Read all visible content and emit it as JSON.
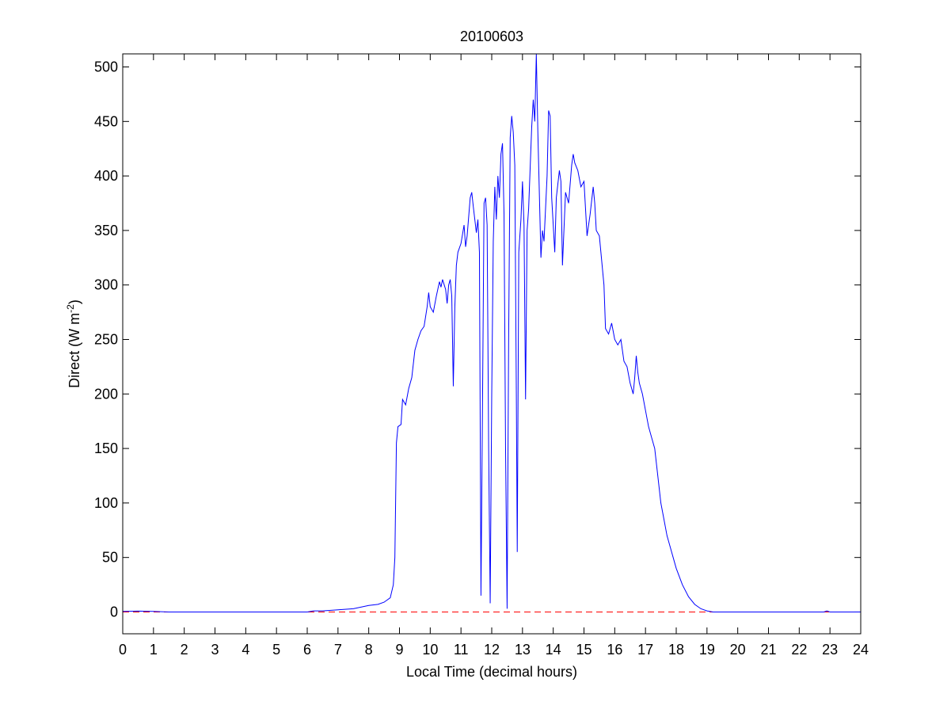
{
  "chart_data": {
    "type": "line",
    "title": "20100603",
    "xlabel": "Local Time (decimal hours)",
    "ylabel_parts": [
      "Direct (W m",
      "-2",
      ")"
    ],
    "xlim": [
      0,
      24
    ],
    "xticks": [
      0,
      1,
      2,
      3,
      4,
      5,
      6,
      7,
      8,
      9,
      10,
      11,
      12,
      13,
      14,
      15,
      16,
      17,
      18,
      19,
      20,
      21,
      22,
      23,
      24
    ],
    "ylim": [
      -20,
      512
    ],
    "yticks": [
      0,
      50,
      100,
      150,
      200,
      250,
      300,
      350,
      400,
      450,
      500
    ],
    "reference_line": {
      "value": 0,
      "color": "#ff0000",
      "dash": "dashed"
    },
    "series": [
      {
        "color": "#0000ff",
        "x": [
          0,
          0.5,
          1,
          1.5,
          6,
          6.2,
          6.5,
          7,
          7.5,
          8,
          8.3,
          8.5,
          8.7,
          8.8,
          8.85,
          8.9,
          8.95,
          9.05,
          9.1,
          9.2,
          9.3,
          9.4,
          9.5,
          9.6,
          9.7,
          9.8,
          9.9,
          9.95,
          10.0,
          10.1,
          10.2,
          10.3,
          10.35,
          10.4,
          10.5,
          10.55,
          10.6,
          10.65,
          10.7,
          10.75,
          10.8,
          10.85,
          10.9,
          11.0,
          11.1,
          11.15,
          11.2,
          11.3,
          11.35,
          11.4,
          11.45,
          11.5,
          11.55,
          11.6,
          11.65,
          11.7,
          11.75,
          11.8,
          11.85,
          11.9,
          11.95,
          12.0,
          12.05,
          12.1,
          12.15,
          12.2,
          12.25,
          12.3,
          12.35,
          12.4,
          12.45,
          12.5,
          12.55,
          12.6,
          12.65,
          12.7,
          12.75,
          12.8,
          12.83,
          12.88,
          12.95,
          13.0,
          13.05,
          13.1,
          13.15,
          13.2,
          13.3,
          13.35,
          13.4,
          13.45,
          13.5,
          13.6,
          13.65,
          13.7,
          13.8,
          13.85,
          13.9,
          13.95,
          14.0,
          14.05,
          14.1,
          14.2,
          14.25,
          14.3,
          14.4,
          14.5,
          14.6,
          14.65,
          14.7,
          14.8,
          14.9,
          15.0,
          15.05,
          15.1,
          15.2,
          15.3,
          15.35,
          15.4,
          15.5,
          15.55,
          15.65,
          15.7,
          15.8,
          15.9,
          16.0,
          16.1,
          16.2,
          16.3,
          16.4,
          16.5,
          16.6,
          16.65,
          16.7,
          16.75,
          16.8,
          16.9,
          17.0,
          17.1,
          17.2,
          17.3,
          17.4,
          17.5,
          17.6,
          17.7,
          17.8,
          17.9,
          18.0,
          18.2,
          18.4,
          18.6,
          18.8,
          19.0,
          19.2,
          20,
          22,
          22.8,
          22.9,
          23,
          24
        ],
        "values": [
          0.5,
          0.8,
          0.5,
          0,
          0,
          1,
          1,
          2,
          3,
          6,
          7,
          9,
          13,
          25,
          50,
          155,
          170,
          172,
          195,
          190,
          205,
          215,
          240,
          250,
          258,
          262,
          280,
          293,
          280,
          275,
          290,
          303,
          298,
          305,
          296,
          283,
          300,
          305,
          290,
          207,
          280,
          318,
          330,
          338,
          355,
          335,
          345,
          380,
          385,
          372,
          360,
          348,
          360,
          330,
          15,
          190,
          375,
          380,
          355,
          150,
          8,
          200,
          340,
          390,
          360,
          400,
          380,
          420,
          430,
          365,
          150,
          3,
          250,
          435,
          455,
          440,
          410,
          200,
          55,
          330,
          360,
          395,
          355,
          195,
          350,
          370,
          445,
          470,
          450,
          512,
          440,
          325,
          350,
          340,
          400,
          460,
          455,
          380,
          355,
          330,
          380,
          405,
          395,
          318,
          385,
          375,
          410,
          420,
          412,
          405,
          390,
          395,
          370,
          345,
          365,
          390,
          375,
          350,
          345,
          330,
          300,
          260,
          255,
          265,
          250,
          245,
          250,
          230,
          225,
          210,
          200,
          215,
          235,
          220,
          210,
          200,
          185,
          170,
          160,
          150,
          125,
          100,
          85,
          70,
          60,
          50,
          40,
          25,
          14,
          7,
          3,
          1,
          0,
          0,
          0,
          0,
          1,
          0,
          0
        ]
      }
    ]
  }
}
